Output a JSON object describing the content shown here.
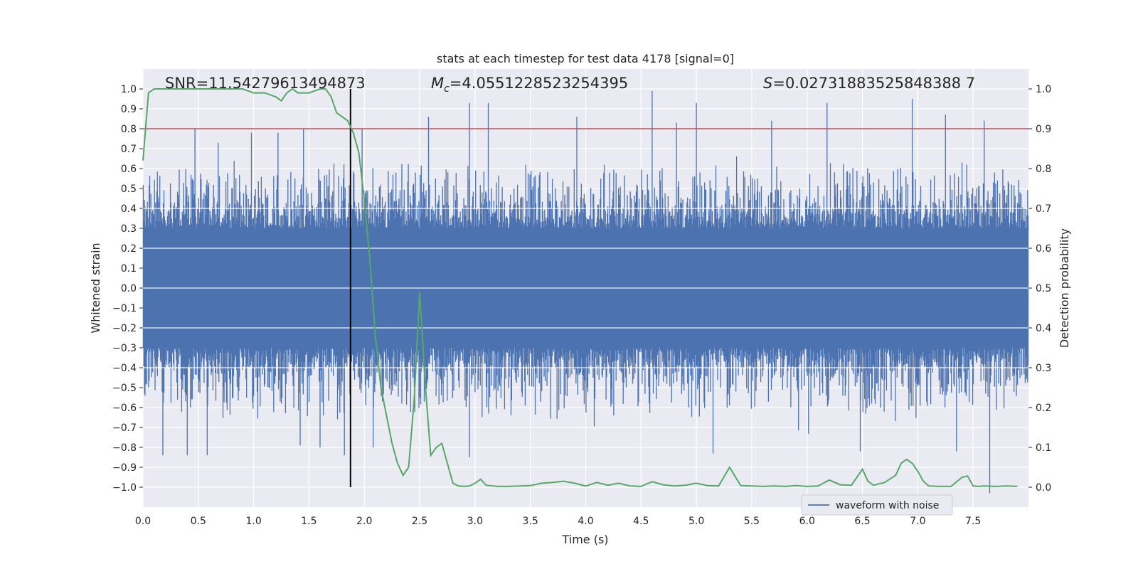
{
  "chart_data": {
    "type": "line",
    "title": "stats at each timestep for test data 4178 [signal=0]",
    "xlabel": "Time (s)",
    "ylabel_left": "Whitened strain",
    "ylabel_right": "Detection probability",
    "xlim": [
      0,
      8
    ],
    "ylim_left": [
      -1.1,
      1.1
    ],
    "ylim_right": [
      -0.05,
      1.05
    ],
    "x_ticks": [
      "0.0",
      "0.5",
      "1.0",
      "1.5",
      "2.0",
      "2.5",
      "3.0",
      "3.5",
      "4.0",
      "4.5",
      "5.0",
      "5.5",
      "6.0",
      "6.5",
      "7.0",
      "7.5"
    ],
    "y_left_ticks": [
      "1.0",
      "0.9",
      "0.8",
      "0.7",
      "0.6",
      "0.5",
      "0.4",
      "0.3",
      "0.2",
      "0.1",
      "0.0",
      "-0.1",
      "-0.2",
      "-0.3",
      "-0.4",
      "-0.5",
      "-0.6",
      "-0.7",
      "-0.8",
      "-0.9",
      "-1.0"
    ],
    "y_right_ticks": [
      "1.0",
      "0.9",
      "0.8",
      "0.7",
      "0.6",
      "0.5",
      "0.4",
      "0.3",
      "0.2",
      "0.1",
      "0.0"
    ],
    "grid": true,
    "annotations": {
      "snr": "SNR=11.54279613494873",
      "mc_sym": "M",
      "mc_sub": "c",
      "mc_val": "=4.0551228523254395",
      "s_sym": "S",
      "s_val": "=0.02731883525848388 7"
    },
    "legend": {
      "placement": "lower-right",
      "entries": [
        "waveform with noise"
      ]
    },
    "threshold": {
      "value_left": 0.8,
      "color": "#c44e52"
    },
    "vline": {
      "x": 1.875,
      "color": "#000000"
    },
    "waveform": {
      "name": "waveform with noise",
      "color": "#4c72b0",
      "band": [
        -0.3,
        0.3
      ],
      "typical_peak_abs": 0.6,
      "max_positive": 0.99,
      "min_negative": -1.03,
      "peaks_positive": [
        [
          0.47,
          0.8
        ],
        [
          0.68,
          0.73
        ],
        [
          0.98,
          0.78
        ],
        [
          1.22,
          0.78
        ],
        [
          1.45,
          0.8
        ],
        [
          1.98,
          0.8
        ],
        [
          2.58,
          0.86
        ],
        [
          2.95,
          0.93
        ],
        [
          3.12,
          0.93
        ],
        [
          3.92,
          0.86
        ],
        [
          4.6,
          0.99
        ],
        [
          4.82,
          0.83
        ],
        [
          5.0,
          0.93
        ],
        [
          5.68,
          0.84
        ],
        [
          6.18,
          0.93
        ],
        [
          6.95,
          0.95
        ],
        [
          7.25,
          0.87
        ],
        [
          7.6,
          0.84
        ]
      ],
      "peaks_negative": [
        [
          0.18,
          -0.84
        ],
        [
          0.4,
          -0.84
        ],
        [
          0.58,
          -0.84
        ],
        [
          1.42,
          -0.79
        ],
        [
          1.6,
          -0.8
        ],
        [
          1.82,
          -0.84
        ],
        [
          2.08,
          -0.8
        ],
        [
          2.95,
          -0.85
        ],
        [
          5.15,
          -0.83
        ],
        [
          6.48,
          -0.82
        ],
        [
          7.35,
          -0.82
        ],
        [
          7.65,
          -1.03
        ]
      ]
    },
    "probability": {
      "name": "Detection probability",
      "color": "#55a868",
      "x": [
        0.0,
        0.05,
        0.1,
        0.2,
        0.3,
        0.5,
        0.7,
        0.9,
        1.0,
        1.1,
        1.2,
        1.25,
        1.3,
        1.35,
        1.4,
        1.5,
        1.6,
        1.65,
        1.7,
        1.75,
        1.8,
        1.85,
        1.9,
        1.95,
        2.0,
        2.05,
        2.1,
        2.15,
        2.2,
        2.25,
        2.3,
        2.35,
        2.4,
        2.45,
        2.5,
        2.55,
        2.6,
        2.65,
        2.7,
        2.75,
        2.8,
        2.85,
        2.9,
        2.95,
        3.0,
        3.05,
        3.1,
        3.2,
        3.3,
        3.5,
        3.6,
        3.7,
        3.8,
        3.9,
        4.0,
        4.1,
        4.2,
        4.3,
        4.4,
        4.5,
        4.6,
        4.7,
        4.8,
        4.9,
        5.0,
        5.1,
        5.2,
        5.3,
        5.4,
        5.5,
        5.6,
        5.7,
        5.8,
        5.9,
        6.0,
        6.1,
        6.2,
        6.3,
        6.4,
        6.5,
        6.55,
        6.6,
        6.7,
        6.8,
        6.85,
        6.9,
        6.95,
        7.0,
        7.05,
        7.1,
        7.2,
        7.3,
        7.4,
        7.45,
        7.5,
        7.55,
        7.6,
        7.7,
        7.8,
        7.9
      ],
      "y": [
        0.82,
        0.99,
        1.0,
        1.0,
        1.0,
        1.0,
        1.0,
        1.0,
        0.99,
        0.99,
        0.98,
        0.97,
        0.99,
        1.0,
        0.99,
        0.99,
        1.0,
        1.0,
        0.98,
        0.94,
        0.93,
        0.92,
        0.89,
        0.84,
        0.72,
        0.57,
        0.38,
        0.25,
        0.18,
        0.11,
        0.06,
        0.03,
        0.05,
        0.22,
        0.49,
        0.26,
        0.08,
        0.1,
        0.11,
        0.06,
        0.01,
        0.003,
        0.002,
        0.003,
        0.01,
        0.02,
        0.005,
        0.002,
        0.002,
        0.004,
        0.01,
        0.012,
        0.015,
        0.01,
        0.003,
        0.012,
        0.005,
        0.01,
        0.003,
        0.002,
        0.014,
        0.006,
        0.003,
        0.005,
        0.01,
        0.004,
        0.003,
        0.05,
        0.004,
        0.003,
        0.002,
        0.003,
        0.002,
        0.004,
        0.002,
        0.003,
        0.018,
        0.006,
        0.005,
        0.045,
        0.015,
        0.005,
        0.012,
        0.03,
        0.06,
        0.07,
        0.06,
        0.04,
        0.015,
        0.003,
        0.002,
        0.002,
        0.025,
        0.028,
        0.003,
        0.002,
        0.003,
        0.002,
        0.003,
        0.002
      ]
    }
  }
}
